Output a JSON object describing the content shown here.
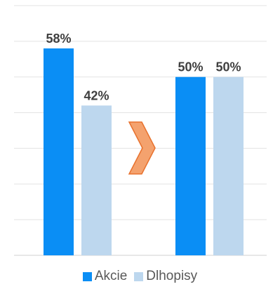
{
  "chart_data": [
    {
      "type": "bar",
      "categories": [
        ""
      ],
      "series": [
        {
          "name": "Akcie",
          "values": [
            58
          ],
          "color": "#0a8ef5"
        },
        {
          "name": "Dlhopisy",
          "values": [
            42
          ],
          "color": "#bdd7ee"
        }
      ],
      "data_labels": [
        "58%",
        "42%"
      ],
      "ylim": [
        0,
        70
      ],
      "grid": true,
      "legend": "bottom"
    },
    {
      "type": "bar",
      "categories": [
        ""
      ],
      "series": [
        {
          "name": "Akcie",
          "values": [
            50
          ],
          "color": "#0a8ef5"
        },
        {
          "name": "Dlhopisy",
          "values": [
            50
          ],
          "color": "#bdd7ee"
        }
      ],
      "data_labels": [
        "50%",
        "50%"
      ],
      "ylim": [
        0,
        70
      ],
      "grid": true,
      "legend": "bottom"
    }
  ],
  "arrow": {
    "icon": "chevron-right-arrow-icon",
    "fill": "#f4a26e",
    "stroke": "#e8712d"
  },
  "legend": {
    "items": [
      {
        "label": "Akcie",
        "color": "#0a8ef5"
      },
      {
        "label": "Dlhopisy",
        "color": "#bdd7ee"
      }
    ]
  }
}
